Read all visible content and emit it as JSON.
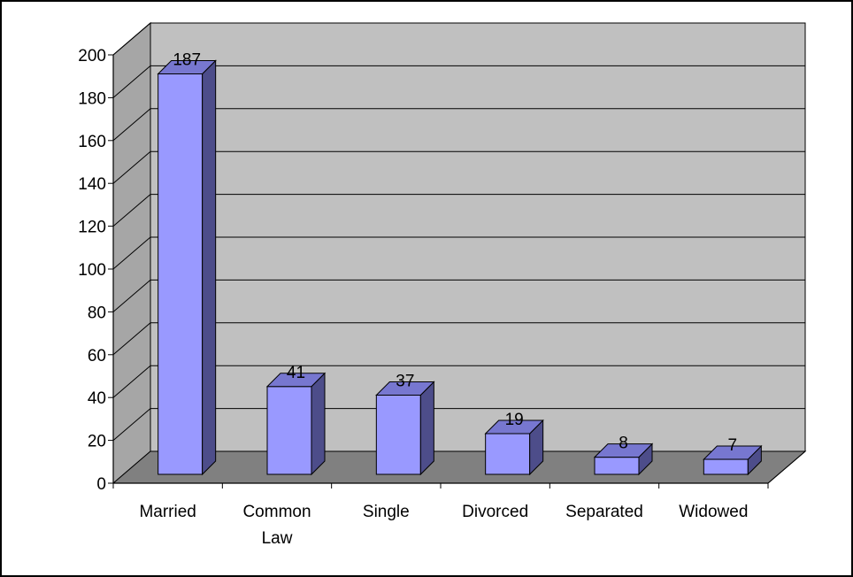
{
  "chart_data": {
    "type": "bar",
    "style": "3d-column",
    "title": "",
    "xlabel": "",
    "ylabel": "",
    "categories": [
      "Married",
      "Common Law",
      "Single",
      "Divorced",
      "Separated",
      "Widowed"
    ],
    "category_display_lines": [
      [
        "Married"
      ],
      [
        "Common",
        "Law"
      ],
      [
        "Single"
      ],
      [
        "Divorced"
      ],
      [
        "Separated"
      ],
      [
        "Widowed"
      ]
    ],
    "values": [
      187,
      41,
      37,
      19,
      8,
      7
    ],
    "data_labels": [
      "187",
      "41",
      "37",
      "19",
      "8",
      "7"
    ],
    "ylim": [
      0,
      200
    ],
    "yticks": [
      0,
      20,
      40,
      60,
      80,
      100,
      120,
      140,
      160,
      180,
      200
    ],
    "grid": true,
    "legend": "none",
    "colors": {
      "bar_front": "#9999ff",
      "bar_side": "#4d4d8a",
      "bar_top": "#7777d0",
      "wall": "#c0c0c0",
      "side_wall": "#a6a6a6",
      "floor": "#808080",
      "gridline": "#000000"
    }
  }
}
